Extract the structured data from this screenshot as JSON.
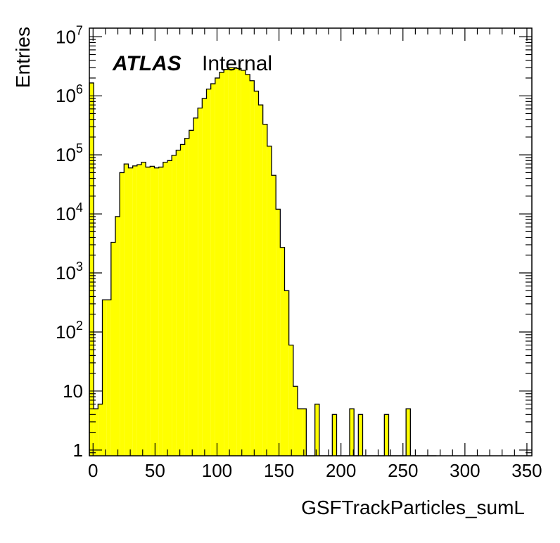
{
  "chart_data": {
    "type": "bar",
    "histogram": true,
    "xlabel": "GSFTrackParticles_sumL",
    "ylabel": "Entries",
    "label_bold": "ATLAS",
    "label_status": "Internal",
    "xlim": [
      -3,
      354
    ],
    "ylim": [
      0.8,
      14000000
    ],
    "log_y": true,
    "fill_color": "#ffff00",
    "line_color": "#000000",
    "bin_width": 3.5,
    "x_ticks": [
      "0",
      "50",
      "100",
      "150",
      "200",
      "250",
      "300",
      "350"
    ],
    "x_tick_values": [
      0,
      50,
      100,
      150,
      200,
      250,
      300,
      350
    ],
    "y_ticks": [
      {
        "value": 1,
        "base": "1",
        "exp": ""
      },
      {
        "value": 10,
        "base": "10",
        "exp": ""
      },
      {
        "value": 100,
        "base": "10",
        "exp": "2"
      },
      {
        "value": 1000,
        "base": "10",
        "exp": "3"
      },
      {
        "value": 10000,
        "base": "10",
        "exp": "4"
      },
      {
        "value": 100000,
        "base": "10",
        "exp": "5"
      },
      {
        "value": 1000000,
        "base": "10",
        "exp": "6"
      },
      {
        "value": 10000000,
        "base": "10",
        "exp": "7"
      }
    ],
    "bins_start": [
      -3,
      0.5,
      4,
      7.5,
      11,
      14.5,
      18,
      21.5,
      25,
      28.5,
      32,
      35.5,
      39,
      42.5,
      46,
      49.5,
      53,
      56.5,
      60,
      63.5,
      67,
      70.5,
      74,
      77.5,
      81,
      84.5,
      88,
      91.5,
      95,
      98.5,
      102,
      105.5,
      109,
      112.5,
      116,
      119.5,
      123,
      126.5,
      130,
      133.5,
      137,
      140.5,
      144,
      147.5,
      151,
      154.5,
      158,
      161.5,
      165,
      168.5,
      172,
      175.5,
      179,
      182.5,
      186,
      189.5,
      193,
      196.5,
      200,
      203.5,
      207,
      210.5,
      214,
      217.5,
      221,
      224.5,
      228,
      231.5,
      235,
      238.5,
      242,
      245.5,
      249,
      252.5,
      256,
      259.5,
      263,
      266.5,
      270,
      273.5
    ],
    "bin_values": [
      1650000,
      5,
      6,
      350,
      350,
      3300,
      9000,
      50000,
      70000,
      60000,
      65000,
      68000,
      75000,
      62000,
      64000,
      60000,
      62000,
      75000,
      80000,
      98000,
      120000,
      150000,
      190000,
      260000,
      420000,
      620000,
      900000,
      1300000,
      1600000,
      2000000,
      2500000,
      2800000,
      3000000,
      3000000,
      2900000,
      2700000,
      2300000,
      1800000,
      1200000,
      700000,
      330000,
      140000,
      45000,
      12000,
      2700,
      500,
      60,
      12,
      5,
      5,
      0,
      0,
      6,
      0,
      0,
      0,
      4,
      0,
      0,
      0,
      5,
      0,
      4,
      0,
      0,
      0,
      0,
      0,
      4,
      0,
      0,
      0,
      0,
      5,
      0,
      0,
      0,
      0,
      0,
      0
    ]
  }
}
